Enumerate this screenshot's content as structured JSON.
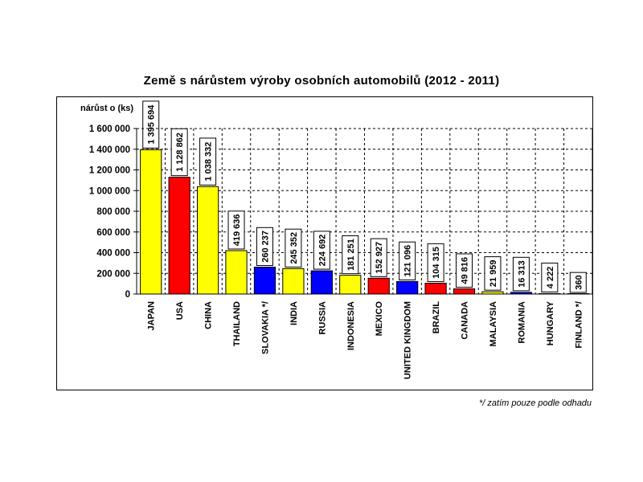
{
  "chart_data": {
    "type": "bar",
    "title": "Země s nárůstem výroby osobních automobilů  (2012 - 2011)",
    "ylabel": "nárůst o (ks)",
    "xlabel": "",
    "ylim": [
      0,
      1600000
    ],
    "yticks": [
      0,
      200000,
      400000,
      600000,
      800000,
      1000000,
      1200000,
      1400000,
      1600000
    ],
    "ytick_labels": [
      "0",
      "200 000",
      "400 000",
      "600 000",
      "800 000",
      "1 000 000",
      "1 200 000",
      "1 400 000",
      "1 600 000"
    ],
    "grid": true,
    "categories": [
      "JAPAN",
      "USA",
      "CHINA",
      "THAILAND",
      "SLOVAKIA */",
      "INDIA",
      "RUSSIA",
      "INDONESIA",
      "MEXICO",
      "UNITED KINGDOM",
      "BRAZIL",
      "CANADA",
      "MALAYSIA",
      "ROMANIA",
      "HUNGARY",
      "FINLAND */"
    ],
    "values": [
      1395694,
      1128862,
      1038332,
      419636,
      260237,
      245352,
      224692,
      181251,
      152927,
      121096,
      104315,
      49816,
      21959,
      16313,
      4222,
      360
    ],
    "value_labels": [
      "1 395 694",
      "1 128 862",
      "1 038 332",
      "419 636",
      "260 237",
      "245 352",
      "224 692",
      "181 251",
      "152 927",
      "121 096",
      "104 315",
      "49 816",
      "21 959",
      "16 313",
      "4 222",
      "360"
    ],
    "bar_colors": [
      "#ffff00",
      "#ff0000",
      "#ffff00",
      "#ffff00",
      "#0000ff",
      "#ffff00",
      "#0000ff",
      "#ffff00",
      "#ff0000",
      "#0000ff",
      "#ff0000",
      "#ff0000",
      "#ffff00",
      "#0000ff",
      "#ffff00",
      "#0000ff"
    ],
    "footnote": "*/ zatím pouze podle odhadu"
  }
}
